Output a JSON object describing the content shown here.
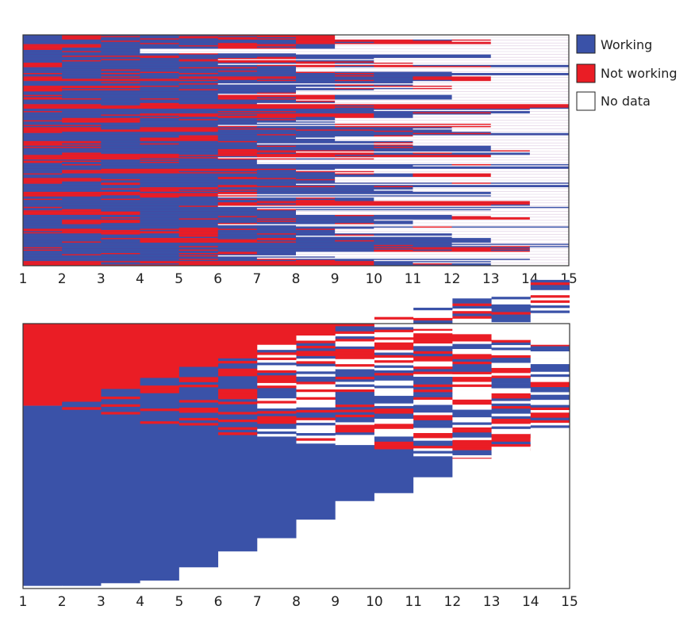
{
  "chart_data": [
    {
      "type": "heatmap",
      "name": "individual-trajectories",
      "title": "",
      "xlabel": "",
      "ylabel": "",
      "x": [
        1,
        2,
        3,
        4,
        5,
        6,
        7,
        8,
        9,
        10,
        11,
        12,
        13,
        14,
        15
      ],
      "xlim": [
        1,
        15
      ],
      "grid": false,
      "legend_position": "right",
      "states": {
        "W": "Working",
        "N": "Not working",
        "X": "No data"
      },
      "rows": [
        "WNWWWNNNXXXXXX",
        "WWWWWWWNNNNNXX",
        "NNWWWNNWXXXXXX",
        "WWWXXXXXXXXXXX",
        "WWWWWWWWWWWWXX",
        "WWWWWNNWWXXXXX",
        "NWWWWWWNNNNNWW",
        "WWWWWWWXXXXXXX",
        "WWWWWWWWWWWWWW",
        "NNNNNNNWWWNNXX",
        "WWWWWWWWWWXXXX",
        "NNNWWWWWWNNXXX",
        "WWWWWWWXXXXXXX",
        "WWWWWNNNWWWXXX",
        "WWWWWWWWXXXXXX",
        "NNNNNNNNNNNNNN",
        "WWWWWWWWWWWWWX",
        "WWWNNNNNNWWWXX",
        "WNNWWWWWXXXXXX",
        "WWWWWWWWNNNNXX",
        "NNNNNWWWWWWXXX",
        "WWWWWWWWWWWWWW",
        "WWWNNWWWXXXXXX",
        "NNWWWWWWWWXXXX",
        "WWWWWWWWWWWWXX",
        "WWWWWNNNNWWWWX",
        "NNNNNNNNNNNNXX",
        "WWWWWWXXXXXXXX",
        "WWWWWWWWWWWWWW",
        "WNNNNNWWWXXXXX",
        "WWWWWWWWWWNNXX",
        "NNWWWWWWXXXXXX",
        "WWWWWWWWWWWWWW",
        "WWWNNWWWWWXXXX",
        "NNNNNNWWWWWWXX",
        "WWWWWWWWWXXXXX",
        "WWWWWNNNNNNNNX",
        "WWWWWWWWWWWWWW",
        "NNNWWWWXXXXXXX",
        "WWWWWWWWWWWNNX",
        "WNNWWWWWWWXXXX",
        "WWWWWWWWWWWWWW",
        "NNNNNWWWXXXXXX",
        "WWWWWWWWWWWXXX",
        "WWWNNNNWWWWWXX",
        "WWWWWWWWWWWWWW",
        "NWWWWWWWWNNNNX",
        "WWWWWWWXXXXXXX",
        "WWWWWWWWWWWWWW",
        "NNNNNNNNNWWWXX"
      ]
    },
    {
      "type": "heatmap",
      "name": "sorted-trajectories",
      "title": "",
      "xlabel": "",
      "ylabel": "",
      "x": [
        1,
        2,
        3,
        4,
        5,
        6,
        7,
        8,
        9,
        10,
        11,
        12,
        13,
        14,
        15
      ],
      "xlim": [
        1,
        15
      ],
      "grid": false,
      "description": "Trajectories sorted by state in year 1 (Not working on top, Working below); no-data region grows stepwise each year",
      "share_not_working_start": 0.31,
      "no_data_top_fraction_by_year": [
        0,
        0,
        0,
        0,
        0,
        0,
        0,
        0,
        0,
        0.005,
        0.02,
        0.04,
        0.06,
        0.08
      ],
      "no_data_bottom_fraction_by_year": [
        0.01,
        0.01,
        0.02,
        0.03,
        0.08,
        0.14,
        0.19,
        0.26,
        0.33,
        0.36,
        0.42,
        0.49,
        0.52,
        0.6
      ],
      "rows_not_working_start": [
        "NNNNNNNNNNNNNX",
        "NNNNNNNNNNNNXX",
        "NNNNNNNNNNNXXX",
        "NNNNNNNNNNXXXX",
        "NNNNNNNNNXXXXX",
        "NNNNNNNNXXXXXX",
        "NNNNNNNWWWWWWX",
        "NNNNNNNXXXXXXX",
        "NNNNNNWWWWWWXX",
        "NNNNNNXXXXXXXX",
        "NNNNNWWWWWWNXX",
        "NNNNNXXXXXXXXX",
        "NNNNWWWWWWWWWX",
        "NNNNXXXXXXXXXX",
        "NNNWWWWWWWWWWW",
        "NNNWWWNNNNNNXX",
        "NNWWWWWWWWWWWW",
        "NNWWWWWXXXXXXX",
        "NWWWWWWWWWWWWW",
        "NWWWWWWWWWWXXX"
      ],
      "rows_working_start": [
        "WNNNNNNNNNNNNX",
        "WNNNNNNNXXXXXX",
        "WNNNNNNNNNNNXX",
        "WWNNNNNNNNNNWW",
        "WWNNNNNNXXXXXX",
        "WWWNNNNNNNNXXX",
        "WWWNNNNWWWWWXX",
        "WWWWNNNNNNNNNX",
        "WWWWWNNNNNNWWW",
        "WWWWWNNNNNNNNN",
        "WWWWWWNNNNNNNN",
        "WWWWWWWNNNNNNN",
        "WWWWWWWWNNNNNN",
        "WWWWWWWWWWNNNN",
        "WWWWWWWWWWWWNN"
      ]
    }
  ],
  "legend": {
    "items": [
      {
        "label": "Working",
        "color": "#3a52a8"
      },
      {
        "label": "Not working",
        "color": "#ea1d25"
      },
      {
        "label": "No data",
        "color": "#ffffff"
      }
    ]
  },
  "colors": {
    "W": "#3a52a8",
    "N": "#ea1d25",
    "X": "#ffffff",
    "M": "#7a2d86"
  },
  "axis_ticks": [
    "1",
    "2",
    "3",
    "4",
    "5",
    "6",
    "7",
    "8",
    "9",
    "10",
    "11",
    "12",
    "13",
    "14",
    "15"
  ]
}
